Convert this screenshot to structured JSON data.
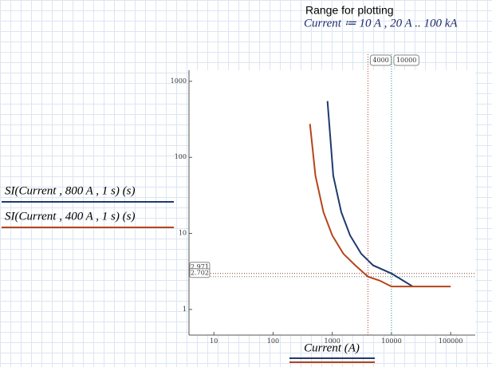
{
  "chart_data": {
    "type": "line",
    "heading": "Range for plotting",
    "range_definition": "Current ≔ 10 A , 20 A .. 100 kA",
    "x_label": "Current (A)",
    "log_x": true,
    "log_y": true,
    "grid": false,
    "xlim": [
      3.8,
      260000
    ],
    "ylim": [
      0.46,
      1400
    ],
    "xticks": [
      10,
      100,
      1000,
      10000,
      100000
    ],
    "yticks": [
      1,
      10,
      100,
      1000
    ],
    "series": [
      {
        "name": "SI(Current , 800 A , 1 s) (s)",
        "color": "#1f3a6e",
        "x": [
          830,
          1040,
          1420,
          2000,
          3080,
          4900,
          10000,
          23000
        ],
        "values": [
          550,
          57,
          19,
          9.4,
          5.4,
          3.8,
          2.971,
          2
        ]
      },
      {
        "name": "SI(Current , 400 A , 1 s) (s)",
        "color": "#b5451b",
        "x": [
          420,
          520,
          710,
          1000,
          1540,
          2450,
          4000,
          6300,
          10000,
          100000
        ],
        "values": [
          275,
          57,
          19,
          9.4,
          5.4,
          3.8,
          2.702,
          2.4,
          2,
          2
        ]
      }
    ],
    "x_markers": [
      {
        "value": 4000,
        "color": "#c0392b"
      },
      {
        "value": 10000,
        "color": "#1a8a8a"
      }
    ],
    "y_markers": [
      {
        "value": 2.971,
        "color": "#8a3a2a"
      },
      {
        "value": 2.702,
        "color": "#777777"
      }
    ]
  }
}
